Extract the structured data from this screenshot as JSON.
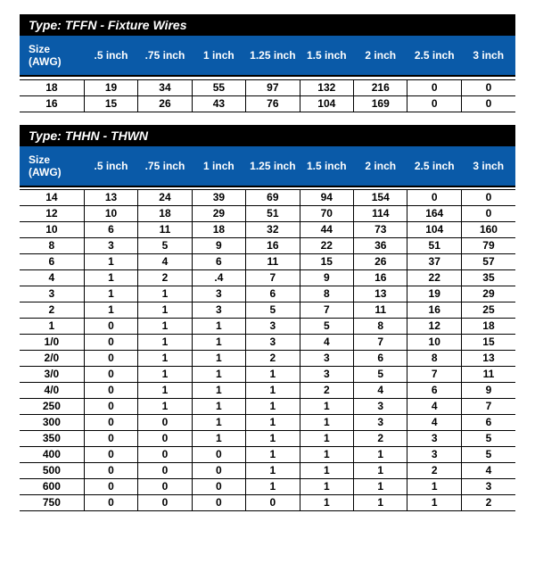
{
  "colors": {
    "header_bg": "#0a5aa8",
    "title_bg": "#000000",
    "title_fg": "#ffffff",
    "cell_border": "#000000"
  },
  "sections": [
    {
      "title": "Type: TFFN - Fixture Wires",
      "columns": [
        "Size (AWG)",
        ".5 inch",
        ".75 inch",
        "1 inch",
        "1.25 inch",
        "1.5  inch",
        "2 inch",
        "2.5 inch",
        "3 inch"
      ],
      "rows": [
        [
          "18",
          "19",
          "34",
          "55",
          "97",
          "132",
          "216",
          "0",
          "0"
        ],
        [
          "16",
          "15",
          "26",
          "43",
          "76",
          "104",
          "169",
          "0",
          "0"
        ]
      ]
    },
    {
      "title": "Type: THHN - THWN",
      "columns": [
        "Size (AWG)",
        ".5 inch",
        ".75 inch",
        "1 inch",
        "1.25 inch",
        "1.5  inch",
        "2 inch",
        "2.5 inch",
        "3 inch"
      ],
      "rows": [
        [
          "14",
          "13",
          "24",
          "39",
          "69",
          "94",
          "154",
          "0",
          "0"
        ],
        [
          "12",
          "10",
          "18",
          "29",
          "51",
          "70",
          "114",
          "164",
          "0"
        ],
        [
          "10",
          "6",
          "11",
          "18",
          "32",
          "44",
          "73",
          "104",
          "160"
        ],
        [
          "8",
          "3",
          "5",
          "9",
          "16",
          "22",
          "36",
          "51",
          "79"
        ],
        [
          "6",
          "1",
          "4",
          "6",
          "11",
          "15",
          "26",
          "37",
          "57"
        ],
        [
          "4",
          "1",
          "2",
          ".4",
          "7",
          "9",
          "16",
          "22",
          "35"
        ],
        [
          "3",
          "1",
          "1",
          "3",
          "6",
          "8",
          "13",
          "19",
          "29"
        ],
        [
          "2",
          "1",
          "1",
          "3",
          "5",
          "7",
          "11",
          "16",
          "25"
        ],
        [
          "1",
          "0",
          "1",
          "1",
          "3",
          "5",
          "8",
          "12",
          "18"
        ],
        [
          "1/0",
          "0",
          "1",
          "1",
          "3",
          "4",
          "7",
          "10",
          "15"
        ],
        [
          "2/0",
          "0",
          "1",
          "1",
          "2",
          "3",
          "6",
          "8",
          "13"
        ],
        [
          "3/0",
          "0",
          "1",
          "1",
          "1",
          "3",
          "5",
          "7",
          "11"
        ],
        [
          "4/0",
          "0",
          "1",
          "1",
          "1",
          "2",
          "4",
          "6",
          "9"
        ],
        [
          "250",
          "0",
          "1",
          "1",
          "1",
          "1",
          "3",
          "4",
          "7"
        ],
        [
          "300",
          "0",
          "0",
          "1",
          "1",
          "1",
          "3",
          "4",
          "6"
        ],
        [
          "350",
          "0",
          "0",
          "1",
          "1",
          "1",
          "2",
          "3",
          "5"
        ],
        [
          "400",
          "0",
          "0",
          "0",
          "1",
          "1",
          "1",
          "3",
          "5"
        ],
        [
          "500",
          "0",
          "0",
          "0",
          "1",
          "1",
          "1",
          "2",
          "4"
        ],
        [
          "600",
          "0",
          "0",
          "0",
          "1",
          "1",
          "1",
          "1",
          "3"
        ],
        [
          "750",
          "0",
          "0",
          "0",
          "0",
          "1",
          "1",
          "1",
          "2"
        ]
      ]
    }
  ]
}
